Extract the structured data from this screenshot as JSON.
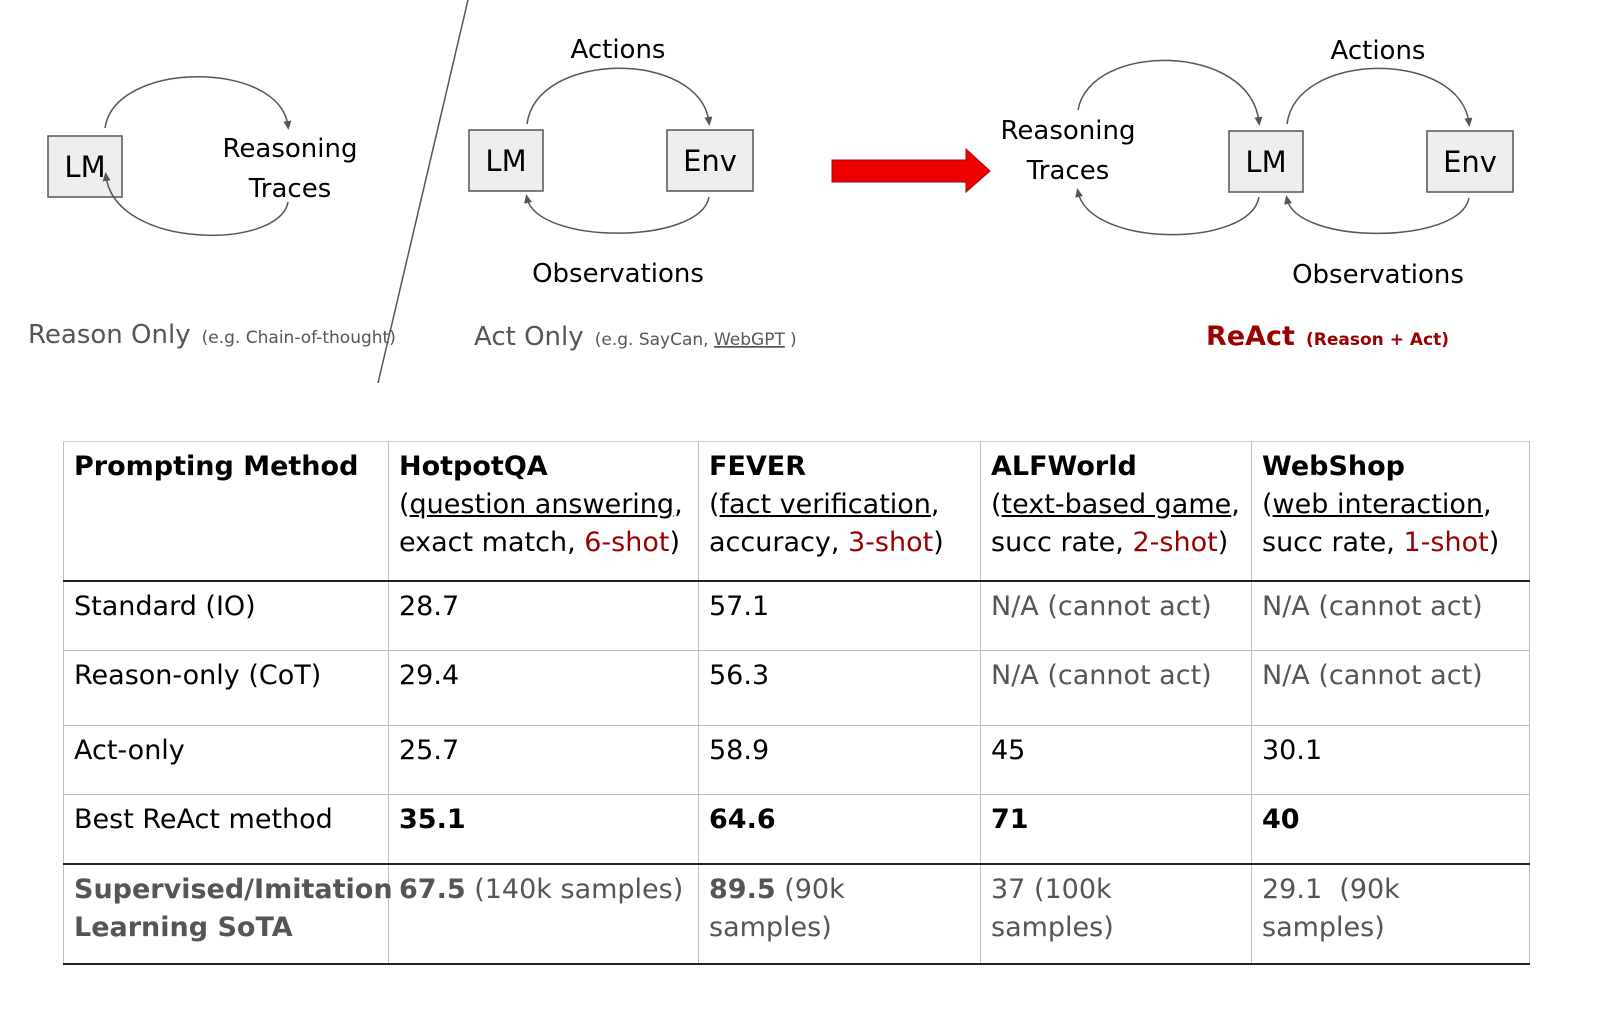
{
  "diagram": {
    "reason_only": {
      "lm_label": "LM",
      "traces_line1": "Reasoning",
      "traces_line2": "Traces",
      "caption_main": "Reason Only",
      "caption_sub": "(e.g. Chain-of-thought)"
    },
    "act_only": {
      "lm_label": "LM",
      "env_label": "Env",
      "actions_label": "Actions",
      "observations_label": "Observations",
      "caption_main": "Act Only",
      "caption_sub_prefix": "(e.g. SayCan, ",
      "caption_sub_link": "WebGPT",
      "caption_sub_suffix": ")"
    },
    "react": {
      "traces_line1": "Reasoning",
      "traces_line2": "Traces",
      "lm_label": "LM",
      "env_label": "Env",
      "actions_label": "Actions",
      "observations_label": "Observations",
      "caption_main": "ReAct",
      "caption_sub": "(Reason + Act)"
    },
    "colors": {
      "arrow": "#ee0000",
      "react_caption": "#9b0000",
      "box_fill": "#eeeeee",
      "box_stroke": "#555555"
    }
  },
  "table": {
    "header": {
      "method": "Prompting Method",
      "hotpotqa": {
        "name": "HotpotQA",
        "open": "(",
        "task": "question answering",
        "metric": ",",
        "metric2": "exact match, ",
        "shot": "6-shot",
        "close": ")"
      },
      "fever": {
        "name": "FEVER",
        "open": "(",
        "task": "fact verification",
        "metric": ",",
        "metric2": "accuracy, ",
        "shot": "3-shot",
        "close": ")"
      },
      "alfworld": {
        "name": "ALFWorld",
        "open": "(",
        "task": "text-based game",
        "metric": ",",
        "metric2": "succ rate, ",
        "shot": "2-shot",
        "close": ")"
      },
      "webshop": {
        "name": "WebShop",
        "open": "(",
        "task": "web interaction",
        "metric": ",",
        "metric2": "succ rate, ",
        "shot": "1-shot",
        "close": ")"
      }
    },
    "rows": [
      {
        "method": "Standard (IO)",
        "hotpotqa": "28.7",
        "fever": "57.1",
        "alfworld": "N/A (cannot act)",
        "webshop": "N/A (cannot act)"
      },
      {
        "method": "Reason-only (CoT)",
        "hotpotqa": "29.4",
        "fever": "56.3",
        "alfworld": "N/A (cannot act)",
        "webshop": "N/A (cannot act)"
      },
      {
        "method": "Act-only",
        "hotpotqa": "25.7",
        "fever": "58.9",
        "alfworld": "45",
        "webshop": "30.1"
      },
      {
        "method": "Best ReAct method",
        "hotpotqa": "35.1",
        "fever": "64.6",
        "alfworld": "71",
        "webshop": "40"
      }
    ],
    "sota": {
      "method_line1": "Supervised/Imitation",
      "method_line2": "Learning SoTA",
      "hotpotqa_num": "67.5",
      "hotpotqa_samples": "(140k samples)",
      "fever_num": "89.5",
      "fever_samples": "(90k samples)",
      "alfworld": "37 (100k samples)",
      "webshop_num": "29.1",
      "webshop_samples": "(90k samples)"
    }
  }
}
